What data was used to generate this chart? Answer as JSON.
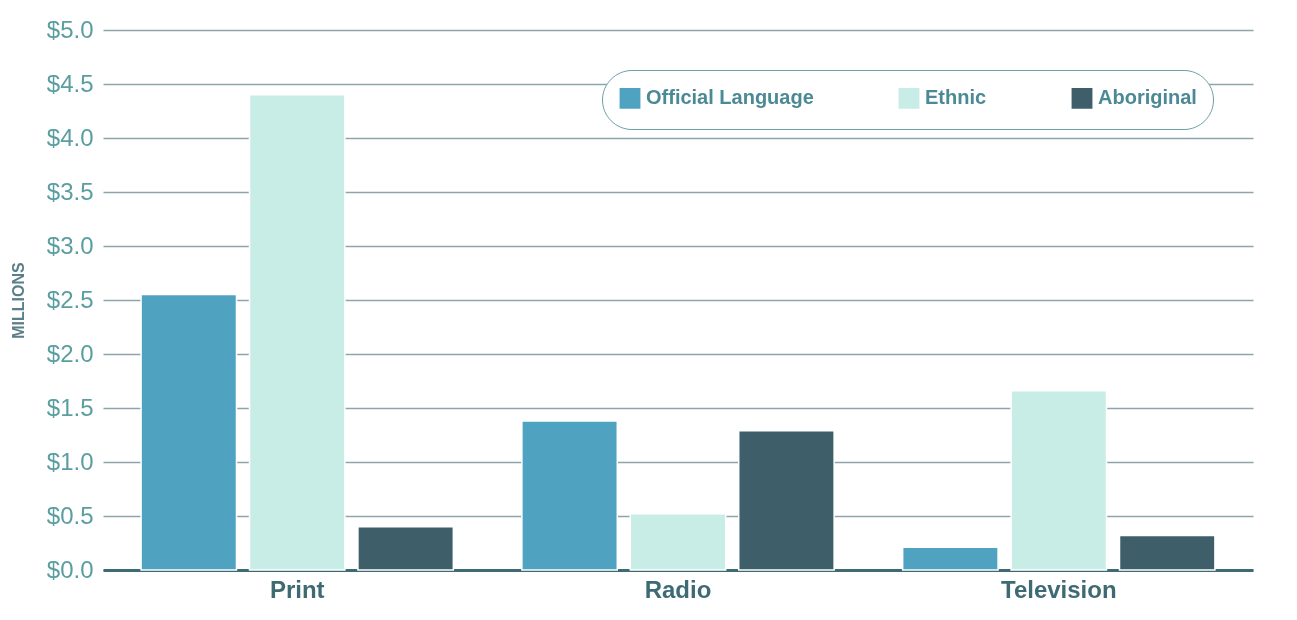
{
  "chart_data": {
    "type": "bar",
    "ylabel": "MILLIONS",
    "categories": [
      "Print",
      "Radio",
      "Television"
    ],
    "series": [
      {
        "name": "Official Language",
        "color": "#4fa3c0",
        "values": [
          2.55,
          1.38,
          0.21
        ]
      },
      {
        "name": "Ethnic",
        "color": "#c8ede6",
        "values": [
          4.4,
          0.52,
          1.66
        ]
      },
      {
        "name": "Aboriginal",
        "color": "#3e5f69",
        "values": [
          0.4,
          1.29,
          0.32
        ]
      }
    ],
    "ylim": [
      0,
      5
    ],
    "yticks": [
      {
        "value": 0,
        "label": "$0.0"
      },
      {
        "value": 0.5,
        "label": "$0.5"
      },
      {
        "value": 1,
        "label": "$1.0"
      },
      {
        "value": 1.5,
        "label": "$1.5"
      },
      {
        "value": 2,
        "label": "$2.0"
      },
      {
        "value": 2.5,
        "label": "$2.5"
      },
      {
        "value": 3,
        "label": "$3.0"
      },
      {
        "value": 3.5,
        "label": "$3.5"
      },
      {
        "value": 4,
        "label": "$4.0"
      },
      {
        "value": 4.5,
        "label": "$4.5"
      },
      {
        "value": 5,
        "label": "$5.0"
      }
    ],
    "grid": "y",
    "legend": "top right"
  }
}
